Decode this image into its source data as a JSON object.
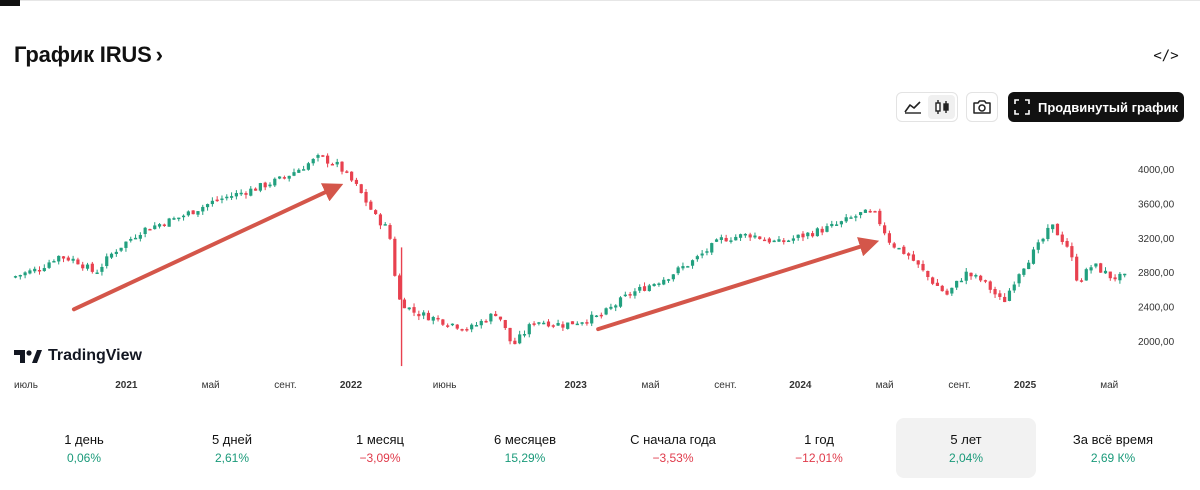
{
  "header": {
    "title": "График IRUS",
    "chevron": "›",
    "embed_icon": "code-icon",
    "embed_label": "</>"
  },
  "toolbar": {
    "line_icon": "area-chart-icon",
    "candle_icon": "candlestick-icon",
    "camera_icon": "camera-icon",
    "advanced_icon": "expand-icon",
    "advanced_label": "Продвинутый график",
    "active": "candle"
  },
  "watermark": {
    "brand": "TradingView"
  },
  "colors": {
    "up": "#22a07f",
    "down": "#e8414f",
    "arrow": "#d4564a",
    "accent": "#111111"
  },
  "chart_data": {
    "type": "candlestick",
    "title": "",
    "y_axis_ticks": [
      "4000,00",
      "3600,00",
      "3200,00",
      "2800,00",
      "2400,00",
      "2000,00"
    ],
    "y_tick_values": [
      4000,
      3600,
      3200,
      2800,
      2400,
      2000
    ],
    "ylim": [
      1750,
      4300
    ],
    "x_axis_labels": [
      {
        "t": 0.0,
        "label": "июль",
        "bold": false
      },
      {
        "t": 6.0,
        "label": "2021",
        "bold": true
      },
      {
        "t": 10.5,
        "label": "май",
        "bold": false
      },
      {
        "t": 14.5,
        "label": "сент.",
        "bold": false
      },
      {
        "t": 18.0,
        "label": "2022",
        "bold": true
      },
      {
        "t": 23.0,
        "label": "июнь",
        "bold": false
      },
      {
        "t": 30.0,
        "label": "2023",
        "bold": true
      },
      {
        "t": 34.0,
        "label": "май",
        "bold": false
      },
      {
        "t": 38.0,
        "label": "сент.",
        "bold": false
      },
      {
        "t": 42.0,
        "label": "2024",
        "bold": true
      },
      {
        "t": 46.5,
        "label": "май",
        "bold": false
      },
      {
        "t": 50.5,
        "label": "сент.",
        "bold": false
      },
      {
        "t": 54.0,
        "label": "2025",
        "bold": true
      },
      {
        "t": 58.5,
        "label": "май",
        "bold": false
      }
    ],
    "t_range": [
      0,
      59.5
    ],
    "price_path": [
      [
        0,
        2750
      ],
      [
        1.5,
        2850
      ],
      [
        2.5,
        3000
      ],
      [
        3.5,
        2950
      ],
      [
        4.5,
        2800
      ],
      [
        5.5,
        3050
      ],
      [
        7,
        3300
      ],
      [
        9,
        3450
      ],
      [
        11,
        3650
      ],
      [
        13,
        3780
      ],
      [
        14.5,
        3900
      ],
      [
        16.5,
        4150
      ],
      [
        17.5,
        4050
      ],
      [
        18.5,
        3800
      ],
      [
        19.5,
        3450
      ],
      [
        20.2,
        3300
      ],
      [
        20.7,
        2500
      ],
      [
        21.5,
        2350
      ],
      [
        23,
        2250
      ],
      [
        24.5,
        2150
      ],
      [
        26,
        2350
      ],
      [
        26.8,
        1950
      ],
      [
        28,
        2250
      ],
      [
        29.5,
        2200
      ],
      [
        31.5,
        2300
      ],
      [
        33,
        2550
      ],
      [
        35,
        2750
      ],
      [
        36.5,
        2950
      ],
      [
        38,
        3200
      ],
      [
        39.5,
        3250
      ],
      [
        41,
        3150
      ],
      [
        42.5,
        3250
      ],
      [
        44,
        3350
      ],
      [
        45.5,
        3500
      ],
      [
        46.2,
        3480
      ],
      [
        47,
        3150
      ],
      [
        48,
        3000
      ],
      [
        49,
        2750
      ],
      [
        50,
        2550
      ],
      [
        51,
        2800
      ],
      [
        52,
        2700
      ],
      [
        53,
        2450
      ],
      [
        53.8,
        2800
      ],
      [
        55,
        3150
      ],
      [
        55.6,
        3350
      ],
      [
        56.5,
        3100
      ],
      [
        57,
        2700
      ],
      [
        57.8,
        2900
      ],
      [
        58.8,
        2750
      ],
      [
        59.5,
        2750
      ]
    ],
    "annotations": [
      {
        "type": "arrow",
        "from": [
          3.2,
          2380
        ],
        "to": [
          17.2,
          3800
        ]
      },
      {
        "type": "arrow",
        "from": [
          31.2,
          2150
        ],
        "to": [
          45.8,
          3150
        ]
      }
    ]
  },
  "periods": [
    {
      "label": "1 день",
      "value": "0,06%",
      "dir": "pos"
    },
    {
      "label": "5 дней",
      "value": "2,61%",
      "dir": "pos"
    },
    {
      "label": "1 месяц",
      "value": "−3,09%",
      "dir": "neg"
    },
    {
      "label": "6 месяцев",
      "value": "15,29%",
      "dir": "pos"
    },
    {
      "label": "С начала года",
      "value": "−3,53%",
      "dir": "neg"
    },
    {
      "label": "1 год",
      "value": "−12,01%",
      "dir": "neg"
    },
    {
      "label": "5 лет",
      "value": "2,04%",
      "dir": "pos"
    },
    {
      "label": "За всё время",
      "value": "2,69 К%",
      "dir": "pos"
    }
  ],
  "selected_period_index": 6
}
